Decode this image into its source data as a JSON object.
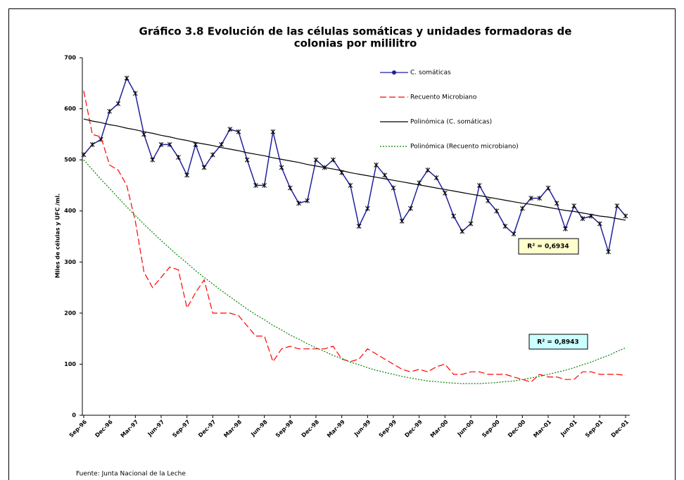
{
  "chart_data": {
    "type": "line",
    "title": [
      "Gráfico 3.8 Evolución de las células somáticas y unidades formadoras de",
      "colonias por mililitro"
    ],
    "y_label": "Miles de células y UFC /ml.",
    "source": "Fuente: Junta Nacional de la Leche",
    "categories": [
      "Sep-96",
      null,
      null,
      "Dec-96",
      null,
      null,
      "Mar-97",
      null,
      null,
      "Jun-97",
      null,
      null,
      "Sep-97",
      null,
      null,
      "Dec-97",
      null,
      null,
      "Mar-98",
      null,
      null,
      "Jun-98",
      null,
      null,
      "Sep-98",
      null,
      null,
      "Dec-98",
      null,
      null,
      "Mar-99",
      null,
      null,
      "Jun-99",
      null,
      null,
      "Sep-99",
      null,
      null,
      "Dec-99",
      null,
      null,
      "Mar-00",
      null,
      null,
      "Jun-00",
      null,
      null,
      "Sep-00",
      null,
      null,
      "Dec-00",
      null,
      null,
      "Mar-01",
      null,
      null,
      "Jun-01",
      null,
      null,
      "Sep-01",
      null,
      null,
      "Dec-01"
    ],
    "series": [
      {
        "name": "C. somáticas",
        "color": "#1f1f9f",
        "line_style": "solid",
        "marker": "x",
        "values": [
          510,
          530,
          540,
          595,
          610,
          660,
          630,
          550,
          500,
          530,
          530,
          505,
          470,
          530,
          485,
          510,
          530,
          560,
          555,
          500,
          450,
          450,
          555,
          485,
          445,
          415,
          420,
          500,
          485,
          500,
          475,
          450,
          370,
          405,
          490,
          470,
          445,
          380,
          405,
          455,
          480,
          465,
          435,
          390,
          360,
          375,
          450,
          420,
          400,
          370,
          355,
          405,
          425,
          425,
          445,
          415,
          365,
          410,
          385,
          390,
          375,
          320,
          410,
          390
        ]
      },
      {
        "name": "Recuento Microbiano",
        "color": "#ff0000",
        "line_style": "dashed",
        "values": [
          635,
          550,
          545,
          490,
          480,
          450,
          380,
          280,
          250,
          270,
          290,
          285,
          210,
          240,
          265,
          200,
          200,
          200,
          195,
          175,
          155,
          155,
          105,
          130,
          135,
          130,
          130,
          130,
          130,
          135,
          110,
          105,
          110,
          130,
          120,
          110,
          100,
          90,
          85,
          90,
          85,
          95,
          100,
          80,
          80,
          85,
          85,
          80,
          80,
          80,
          75,
          70,
          65,
          80,
          75,
          75,
          70,
          70,
          85,
          85,
          80,
          80,
          80,
          78
        ]
      },
      {
        "name": "Polinómica (C. somáticas)",
        "color": "#000000",
        "line_style": "solid",
        "values": [
          580,
          576,
          573,
          569,
          566,
          562,
          559,
          555,
          552,
          548,
          545,
          541,
          538,
          534,
          531,
          528,
          524,
          521,
          518,
          514,
          511,
          508,
          504,
          501,
          498,
          495,
          491,
          488,
          485,
          482,
          479,
          475,
          472,
          469,
          466,
          463,
          460,
          457,
          454,
          451,
          448,
          445,
          442,
          439,
          436,
          433,
          430,
          427,
          424,
          421,
          418,
          415,
          413,
          410,
          407,
          404,
          401,
          399,
          396,
          393,
          390,
          388,
          385,
          382
        ]
      },
      {
        "name": "Polinómica (Recuento microbiano)",
        "color": "#008000",
        "line_style": "dotted",
        "values": [
          500,
          481,
          462,
          444,
          426,
          408,
          391,
          374,
          358,
          342,
          327,
          312,
          298,
          283,
          270,
          257,
          244,
          232,
          220,
          208,
          197,
          187,
          176,
          167,
          157,
          149,
          140,
          132,
          125,
          117,
          111,
          104,
          99,
          93,
          88,
          84,
          80,
          76,
          73,
          70,
          67,
          66,
          64,
          63,
          62,
          62,
          62,
          63,
          64,
          66,
          67,
          70,
          73,
          76,
          80,
          84,
          88,
          93,
          99,
          104,
          111,
          117,
          125,
          132
        ]
      }
    ],
    "annotations": [
      "R² = 0,6934",
      "R² = 0,8943"
    ],
    "ylim": [
      0,
      700
    ],
    "yticks": [
      0,
      100,
      200,
      300,
      400,
      500,
      600,
      700
    ],
    "grid": false,
    "legend": "top-right"
  }
}
